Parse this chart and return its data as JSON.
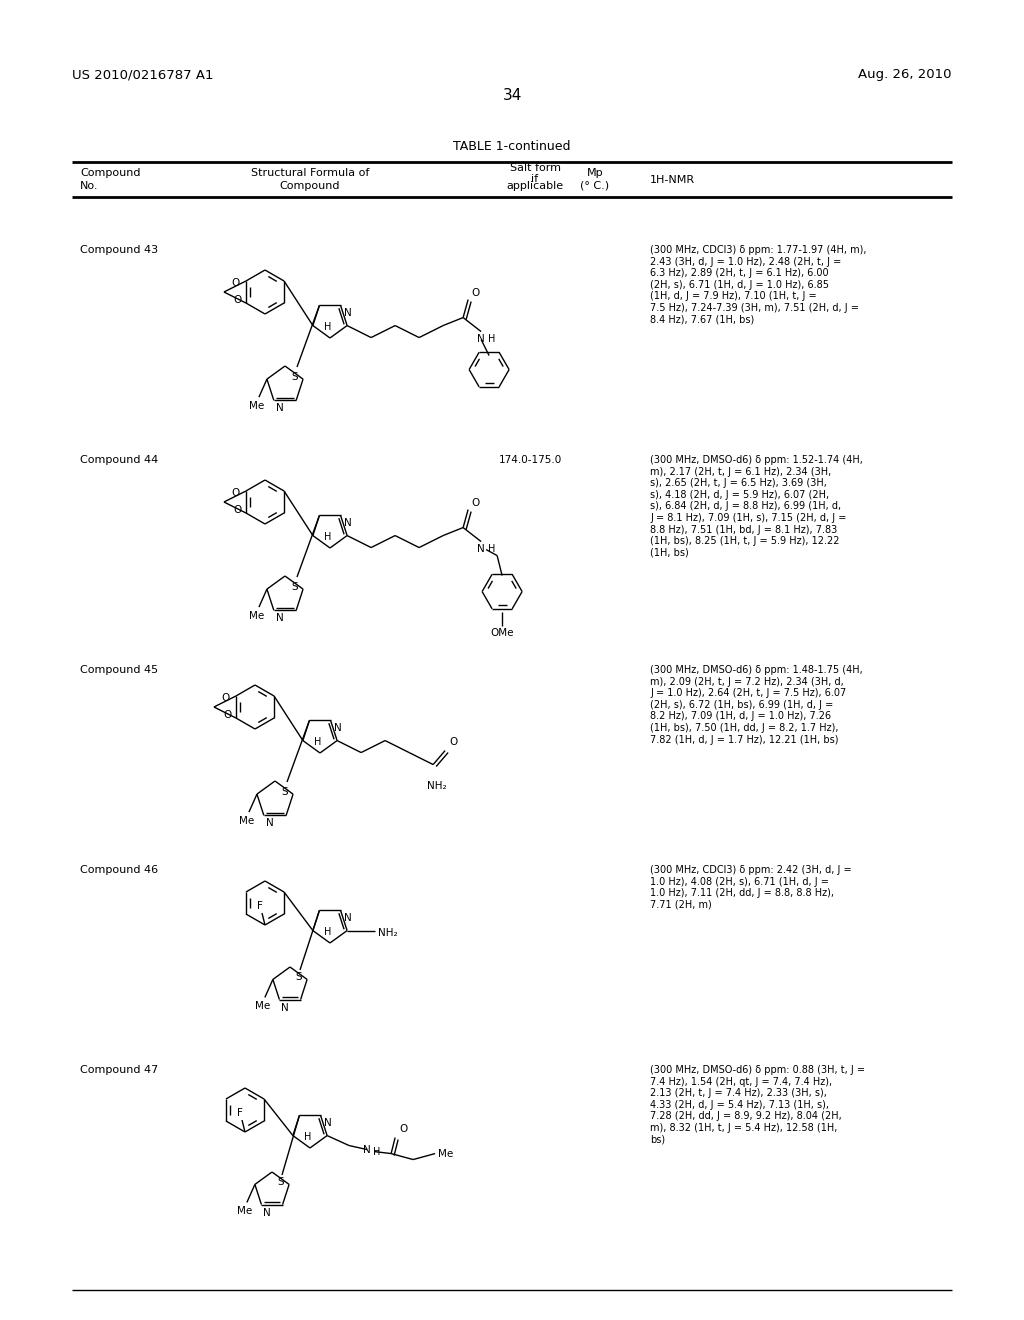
{
  "background_color": "#ffffff",
  "page_number": "34",
  "header_left": "US 2010/0216787 A1",
  "header_right": "Aug. 26, 2010",
  "table_title": "TABLE 1-continued",
  "compounds": [
    {
      "label": "Compound 43",
      "mp": "",
      "nmr": "(300 MHz, CDCl3) δ ppm: 1.77-1.97 (4H, m),\n2.43 (3H, d, J = 1.0 Hz), 2.48 (2H, t, J =\n6.3 Hz), 2.89 (2H, t, J = 6.1 Hz), 6.00\n(2H, s), 6.71 (1H, d, J = 1.0 Hz), 6.85\n(1H, d, J = 7.9 Hz), 7.10 (1H, t, J =\n7.5 Hz), 7.24-7.39 (3H, m), 7.51 (2H, d, J =\n8.4 Hz), 7.67 (1H, bs)"
    },
    {
      "label": "Compound 44",
      "mp": "174.0-175.0",
      "nmr": "(300 MHz, DMSO-d6) δ ppm: 1.52-1.74 (4H,\nm), 2.17 (2H, t, J = 6.1 Hz), 2.34 (3H,\ns), 2.65 (2H, t, J = 6.5 Hz), 3.69 (3H,\ns), 4.18 (2H, d, J = 5.9 Hz), 6.07 (2H,\ns), 6.84 (2H, d, J = 8.8 Hz), 6.99 (1H, d,\nJ = 8.1 Hz), 7.09 (1H, s), 7.15 (2H, d, J =\n8.8 Hz), 7.51 (1H, bd, J = 8.1 Hz), 7.83\n(1H, bs), 8.25 (1H, t, J = 5.9 Hz), 12.22\n(1H, bs)"
    },
    {
      "label": "Compound 45",
      "mp": "",
      "nmr": "(300 MHz, DMSO-d6) δ ppm: 1.48-1.75 (4H,\nm), 2.09 (2H, t, J = 7.2 Hz), 2.34 (3H, d,\nJ = 1.0 Hz), 2.64 (2H, t, J = 7.5 Hz), 6.07\n(2H, s), 6.72 (1H, bs), 6.99 (1H, d, J =\n8.2 Hz), 7.09 (1H, d, J = 1.0 Hz), 7.26\n(1H, bs), 7.50 (1H, dd, J = 8.2, 1.7 Hz),\n7.82 (1H, d, J = 1.7 Hz), 12.21 (1H, bs)"
    },
    {
      "label": "Compound 46",
      "mp": "",
      "nmr": "(300 MHz, CDCl3) δ ppm: 2.42 (3H, d, J =\n1.0 Hz), 4.08 (2H, s), 6.71 (1H, d, J =\n1.0 Hz), 7.11 (2H, dd, J = 8.8, 8.8 Hz),\n7.71 (2H, m)"
    },
    {
      "label": "Compound 47",
      "mp": "",
      "nmr": "(300 MHz, DMSO-d6) δ ppm: 0.88 (3H, t, J =\n7.4 Hz), 1.54 (2H, qt, J = 7.4, 7.4 Hz),\n2.13 (2H, t, J = 7.4 Hz), 2.33 (3H, s),\n4.33 (2H, d, J = 5.4 Hz), 7.13 (1H, s),\n7.28 (2H, dd, J = 8.9, 9.2 Hz), 8.04 (2H,\nm), 8.32 (1H, t, J = 5.4 Hz), 12.58 (1H,\nbs)"
    }
  ]
}
